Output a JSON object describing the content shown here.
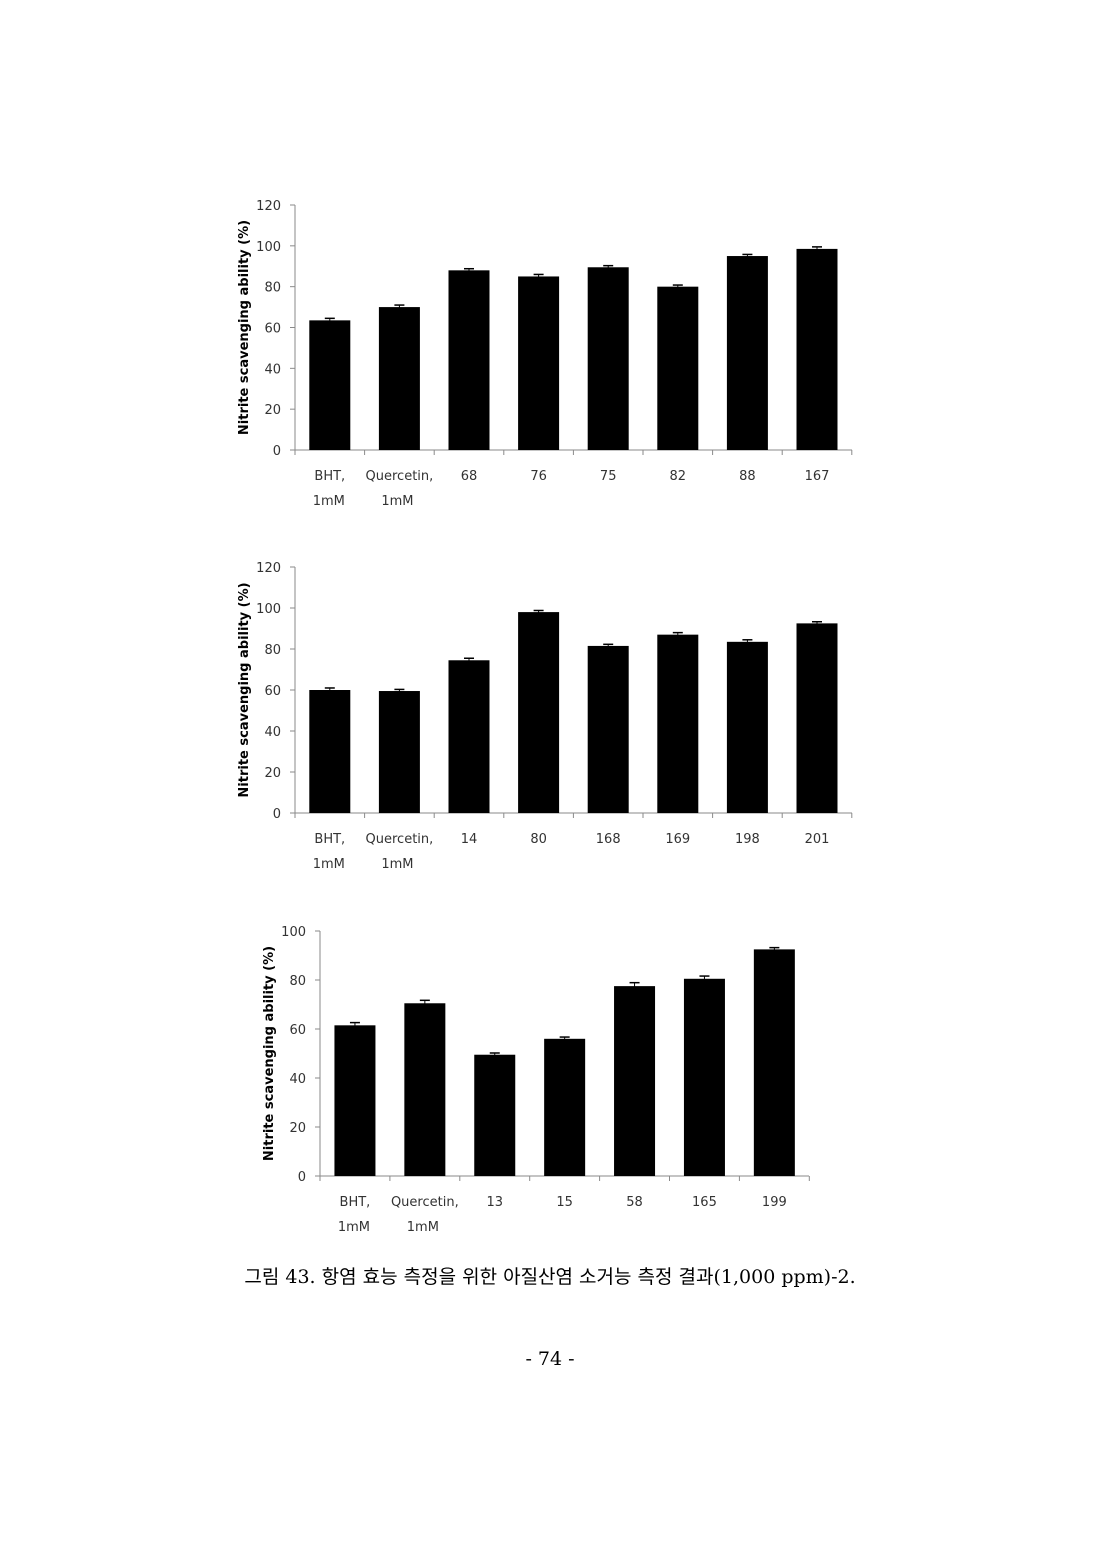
{
  "figure": {
    "caption": "그림 43. 항염 효능 측정을 위한 아질산염 소거능 측정 결과(1,000 ppm)-2.",
    "page_number": "- 74 -"
  },
  "chart_data": [
    {
      "type": "bar",
      "ylabel": "Nitrite scavenging ability (%)",
      "ylim": [
        0,
        120
      ],
      "yticks": [
        0,
        20,
        40,
        60,
        80,
        100,
        120
      ],
      "categories": [
        [
          "BHT,",
          "1mM"
        ],
        [
          "Quercetin,",
          "1mM"
        ],
        [
          "68"
        ],
        [
          "76"
        ],
        [
          "75"
        ],
        [
          "82"
        ],
        [
          "88"
        ],
        [
          "167"
        ]
      ],
      "values": [
        63.5,
        70,
        88,
        85,
        89.5,
        80,
        95,
        98.5
      ],
      "errors": [
        0.5,
        0.5,
        0.3,
        0.5,
        0.3,
        0.3,
        0.3,
        0.5
      ],
      "bar_color": "#000000",
      "grid": false
    },
    {
      "type": "bar",
      "ylabel": "Nitrite scavenging ability (%)",
      "ylim": [
        0,
        120
      ],
      "yticks": [
        0,
        20,
        40,
        60,
        80,
        100,
        120
      ],
      "categories": [
        [
          "BHT,",
          "1mM"
        ],
        [
          "Quercetin,",
          "1mM"
        ],
        [
          "14"
        ],
        [
          "80"
        ],
        [
          "168"
        ],
        [
          "169"
        ],
        [
          "198"
        ],
        [
          "201"
        ]
      ],
      "values": [
        60,
        59.5,
        74.5,
        98,
        81.5,
        87,
        83.5,
        92.5
      ],
      "errors": [
        0.5,
        0.3,
        0.5,
        0.3,
        0.3,
        0.5,
        0.5,
        0.3
      ],
      "bar_color": "#000000",
      "grid": false
    },
    {
      "type": "bar",
      "ylabel": "Nitrite scavenging ability (%)",
      "ylim": [
        0,
        100
      ],
      "yticks": [
        0,
        20,
        40,
        60,
        80,
        100
      ],
      "categories": [
        [
          "BHT,",
          "1mM"
        ],
        [
          "Quercetin,",
          "1mM"
        ],
        [
          "13"
        ],
        [
          "15"
        ],
        [
          "58"
        ],
        [
          "165"
        ],
        [
          "199"
        ]
      ],
      "values": [
        61.5,
        70.5,
        49.5,
        56,
        77.5,
        80.5,
        92.5
      ],
      "errors": [
        0.7,
        0.8,
        0.3,
        0.3,
        1.0,
        0.7,
        0.3
      ],
      "bar_color": "#000000",
      "grid": false
    }
  ]
}
